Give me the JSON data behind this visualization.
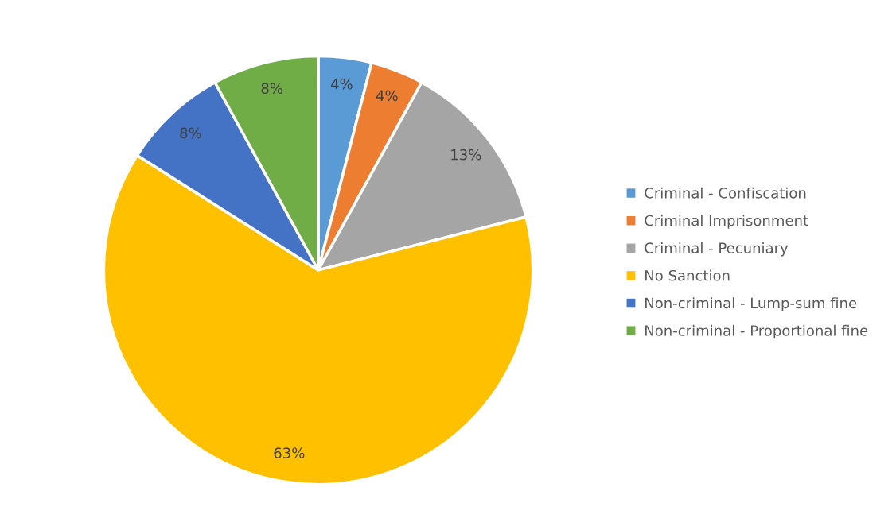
{
  "chart_data": {
    "type": "pie",
    "categories": [
      "Criminal - Confiscation",
      "Criminal Imprisonment",
      "Criminal - Pecuniary",
      "No Sanction",
      "Non-criminal - Lump-sum fine",
      "Non-criminal - Proportional fine"
    ],
    "values": [
      4,
      4,
      13,
      63,
      8,
      8
    ],
    "value_labels": [
      "4%",
      "4%",
      "13%",
      "63%",
      "8%",
      "8%"
    ],
    "colors": [
      "#5b9bd5",
      "#ed7d31",
      "#a5a5a5",
      "#ffc000",
      "#4472c4",
      "#70ad47"
    ],
    "legend": "right"
  }
}
